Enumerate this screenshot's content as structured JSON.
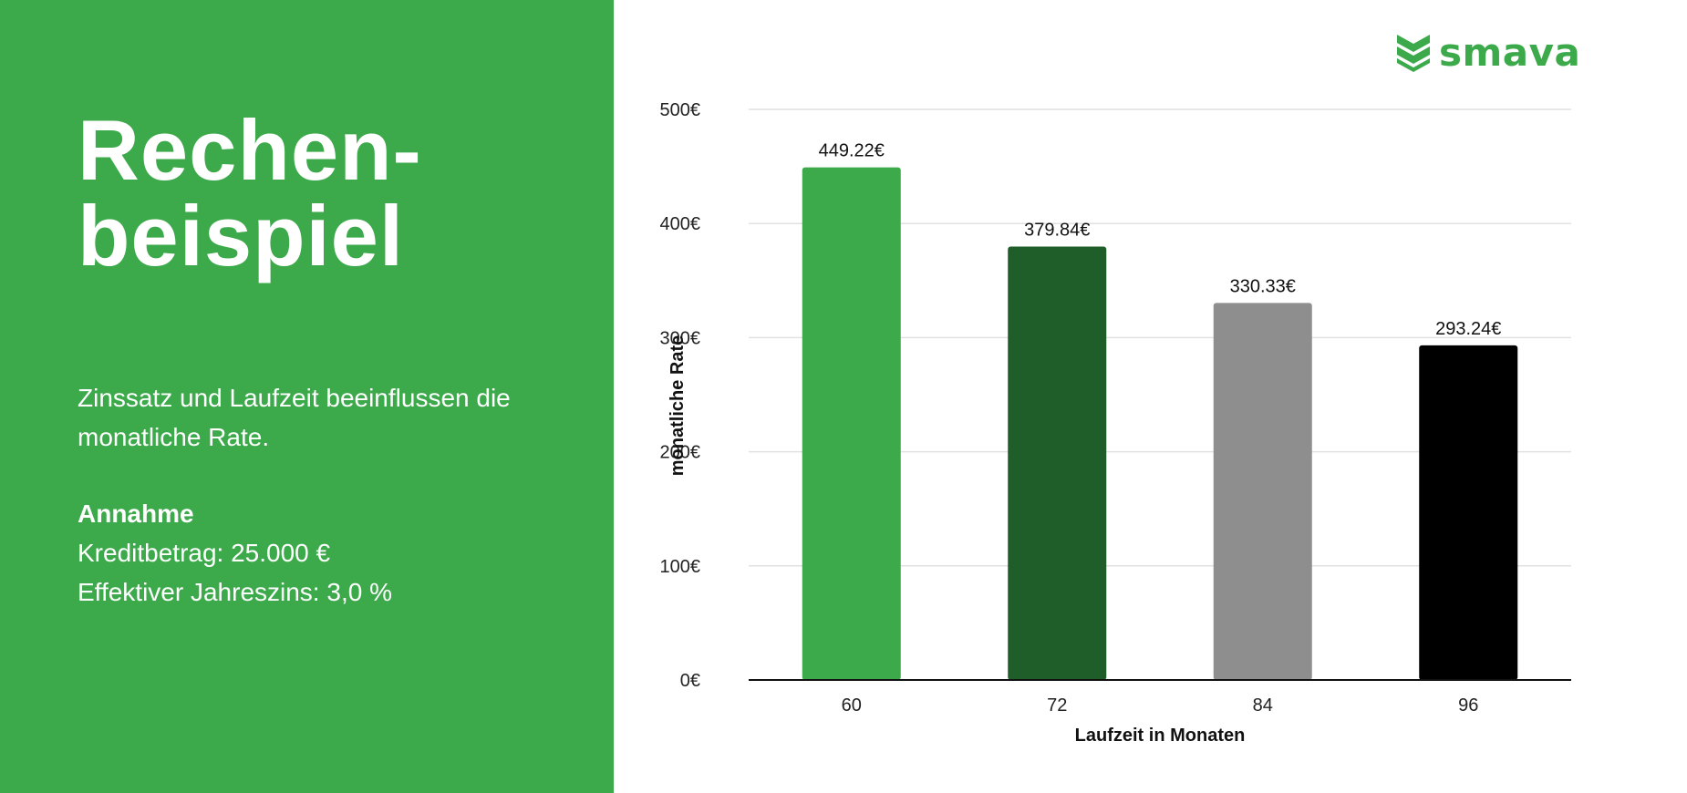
{
  "left_panel": {
    "background": "#3caa4b",
    "headline_line1": "Rechen-",
    "headline_line2": "beispiel",
    "intro_line1": "Zinssatz und Laufzeit beeinflussen die",
    "intro_line2": "monatliche Rate.",
    "assumptions_heading": "Annahme",
    "loan_amount": "Kreditbetrag: 25.000 €",
    "interest_rate": "Effektiver Jahreszins: 3,0 %"
  },
  "logo": {
    "text": "smava",
    "icon": "chevron-stack-icon",
    "color": "#3caa4b"
  },
  "chart_data": {
    "type": "bar",
    "categories": [
      "60",
      "72",
      "84",
      "96"
    ],
    "values": [
      449.22,
      379.84,
      330.33,
      293.24
    ],
    "value_labels": [
      "449.22€",
      "379.84€",
      "330.33€",
      "293.24€"
    ],
    "colors": [
      "#3caa4b",
      "#1f5e29",
      "#8e8e8e",
      "#000000"
    ],
    "xlabel": "Laufzeit in Monaten",
    "ylabel": "monatliche Rate",
    "ylim": [
      0,
      500
    ],
    "yticks": [
      0,
      100,
      200,
      300,
      400,
      500
    ],
    "ytick_labels": [
      "0€",
      "100€",
      "200€",
      "300€",
      "400€",
      "500€"
    ],
    "grid": true,
    "legend": "none"
  }
}
